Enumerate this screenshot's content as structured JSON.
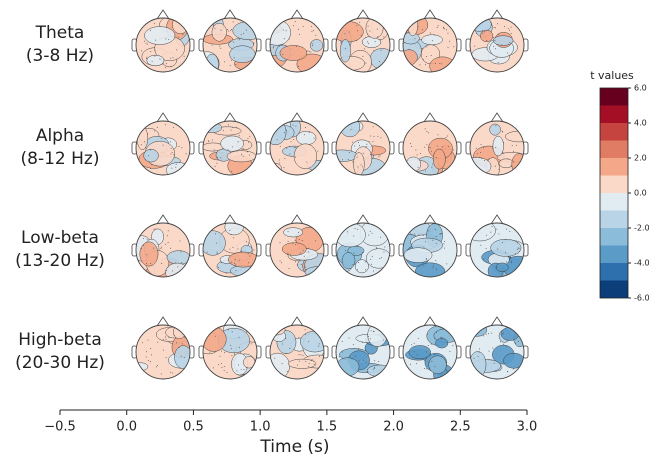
{
  "rows": [
    {
      "label": "Theta",
      "band": "(3-8 Hz)"
    },
    {
      "label": "Alpha",
      "band": "(8-12 Hz)"
    },
    {
      "label": "Low-beta",
      "band": "(13-20 Hz)"
    },
    {
      "label": "High-beta",
      "band": "(20-30 Hz)"
    }
  ],
  "time_axis": {
    "label": "Time (s)",
    "xlim": [
      -0.5,
      3.0
    ],
    "xticks": [
      {
        "value": -0.5,
        "label": "−0.5"
      },
      {
        "value": 0,
        "label": "0.0"
      },
      0.5,
      {
        "value": 1,
        "label": "1.0"
      },
      1.5,
      {
        "value": 2,
        "label": "2.0"
      },
      2.5,
      {
        "value": 3,
        "label": "3.0"
      }
    ]
  },
  "colorbar": {
    "title": "t values",
    "lim": [
      -6,
      6
    ],
    "ticks": [
      {
        "value": 6,
        "label": "6.0"
      },
      {
        "value": 4,
        "label": "4.0"
      },
      {
        "value": 2,
        "label": "2.0"
      },
      {
        "value": 0,
        "label": "0.0"
      },
      {
        "value": -2,
        "label": "-2.0"
      },
      {
        "value": -4,
        "label": "-4.0"
      },
      {
        "value": -6,
        "label": "-6.0"
      }
    ],
    "colors": [
      "#0c3e7a",
      "#2e6fad",
      "#5a9bc8",
      "#8bbcd9",
      "#b9d4e7",
      "#e1ebf2",
      "#fbd9c8",
      "#f4a889",
      "#e07b64",
      "#c6443f",
      "#a50f26",
      "#67001f"
    ]
  }
}
